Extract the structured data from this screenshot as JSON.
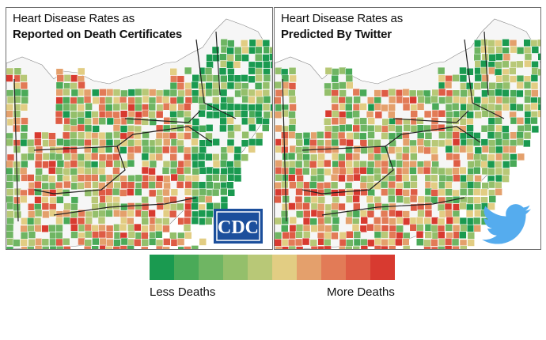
{
  "panels": {
    "left": {
      "title_line1": "Heart Disease Rates as",
      "title_line2": "Reported on Death Certificates",
      "logo_text": "CDC",
      "logo_icon": "cdc-logo"
    },
    "right": {
      "title_line1": "Heart Disease Rates as",
      "title_line2": "Predicted By Twitter",
      "logo_icon": "twitter-bird-icon"
    }
  },
  "legend": {
    "low_label": "Less Deaths",
    "high_label": "More Deaths",
    "colors": [
      "#1a9a50",
      "#4aaa58",
      "#6fb563",
      "#94bf6b",
      "#b8c877",
      "#e2cd83",
      "#e4a06c",
      "#e27b57",
      "#de5c45",
      "#d83a30"
    ]
  },
  "colors": {
    "cdc_blue": "#1c4f9c",
    "twitter_blue": "#55acee",
    "border": "#6e6e6e"
  }
}
